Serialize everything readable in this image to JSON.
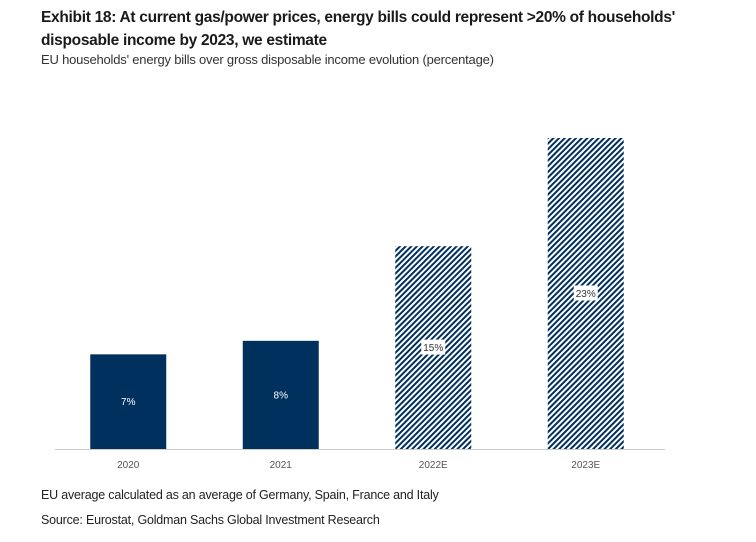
{
  "header": {
    "title": "Exhibit 18: At current gas/power prices, energy bills could represent >20% of households' disposable income by 2023, we estimate",
    "subtitle": "EU households' energy bills over gross disposable income evolution (percentage)"
  },
  "footer": {
    "note": "EU average calculated as an average of Germany, Spain, France and Italy",
    "source": "Source: Eurostat, Goldman Sachs Global Investment Research"
  },
  "colors": {
    "actual": "#00305e",
    "estimate_hatch": "#00305e",
    "axis": "#cccccc"
  },
  "chart_data": {
    "type": "bar",
    "title": "EU households' energy bills over gross disposable income evolution (percentage)",
    "xlabel": "",
    "ylabel": "",
    "categories": [
      "2020",
      "2021",
      "2022E",
      "2023E"
    ],
    "values": [
      7,
      8,
      15,
      23
    ],
    "data_labels": [
      "7%",
      "8%",
      "15%",
      "23%"
    ],
    "estimate": [
      false,
      false,
      true,
      true
    ],
    "ylim": [
      0,
      25
    ],
    "grid": false,
    "legend": "none"
  }
}
